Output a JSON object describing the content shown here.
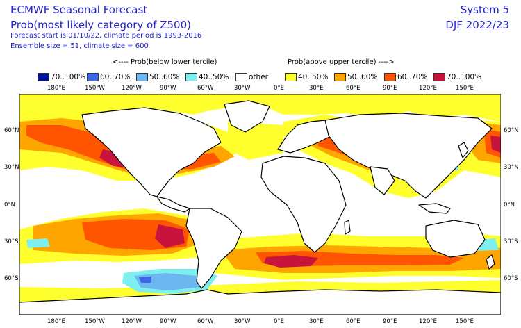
{
  "header": {
    "title": "ECMWF Seasonal Forecast",
    "subtitle": "Prob(most likely category of Z500)",
    "forecast_line": "Forecast start is 01/10/22, climate period is 1993-2016",
    "ensemble_line": "Ensemble size = 51, climate size = 600",
    "system": "System 5",
    "season": "DJF 2022/23"
  },
  "legend": {
    "below_label": "<---- Prob(below lower tercile)",
    "above_label": "Prob(above upper tercile) ---->",
    "items": [
      {
        "label": "70..100%",
        "color": "#00149a"
      },
      {
        "label": "60..70%",
        "color": "#3f66e8"
      },
      {
        "label": "50..60%",
        "color": "#6cb7f0"
      },
      {
        "label": "40..50%",
        "color": "#7eefef"
      },
      {
        "label": "other",
        "color": "#ffffff"
      },
      {
        "label": "40..50%",
        "color": "#ffff2e"
      },
      {
        "label": "50..60%",
        "color": "#ffa500"
      },
      {
        "label": "60..70%",
        "color": "#ff5500"
      },
      {
        "label": "70..100%",
        "color": "#c8143c"
      }
    ]
  },
  "axes": {
    "lon_labels": [
      "180°E",
      "150°W",
      "120°W",
      "90°W",
      "60°W",
      "30°W",
      "0°E",
      "30°E",
      "60°E",
      "90°E",
      "120°E",
      "150°E"
    ],
    "lat_labels": [
      "60°N",
      "30°N",
      "0°N",
      "30°S",
      "60°S"
    ]
  }
}
